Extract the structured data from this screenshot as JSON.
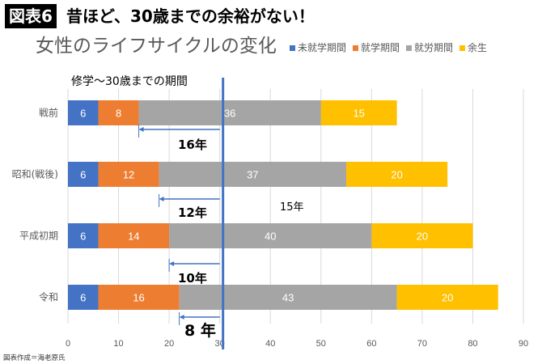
{
  "header": {
    "badge": "図表6",
    "title": "昔ほど、30歳までの余裕がない！"
  },
  "footer": "図表作成＝海老原氏",
  "chart_data": {
    "type": "bar",
    "orientation": "horizontal-stacked",
    "title": "女性のライフサイクルの変化",
    "categories": [
      "戦前",
      "昭和(戦後)",
      "平成初期",
      "令和"
    ],
    "series": [
      {
        "name": "未就学期間",
        "color": "#4472C4",
        "values": [
          6,
          6,
          6,
          6
        ]
      },
      {
        "name": "就学期間",
        "color": "#ED7D31",
        "values": [
          8,
          12,
          14,
          16
        ]
      },
      {
        "name": "就労期間",
        "color": "#A5A5A5",
        "values": [
          36,
          37,
          40,
          43
        ]
      },
      {
        "name": "余生",
        "color": "#FFC000",
        "values": [
          15,
          20,
          20,
          20
        ]
      }
    ],
    "xlim": [
      0,
      90
    ],
    "xticks": [
      0,
      10,
      20,
      30,
      40,
      50,
      60,
      70,
      80,
      90
    ],
    "grid": true,
    "legend_position": "top-right",
    "reference_line": {
      "x": 30,
      "label": "修学～30歳までの期間",
      "color": "#4472C4"
    },
    "annotations": [
      {
        "category": "戦前",
        "label": "16年",
        "from": 30,
        "to": 14
      },
      {
        "category": "昭和(戦後)",
        "label": "12年",
        "from": 30,
        "to": 18
      },
      {
        "category": "平成初期",
        "label": "10年",
        "from": 30,
        "to": 20
      },
      {
        "category": "令和",
        "label": "8 年",
        "from": 30,
        "to": 22
      }
    ],
    "extra_annotation": "15年"
  }
}
